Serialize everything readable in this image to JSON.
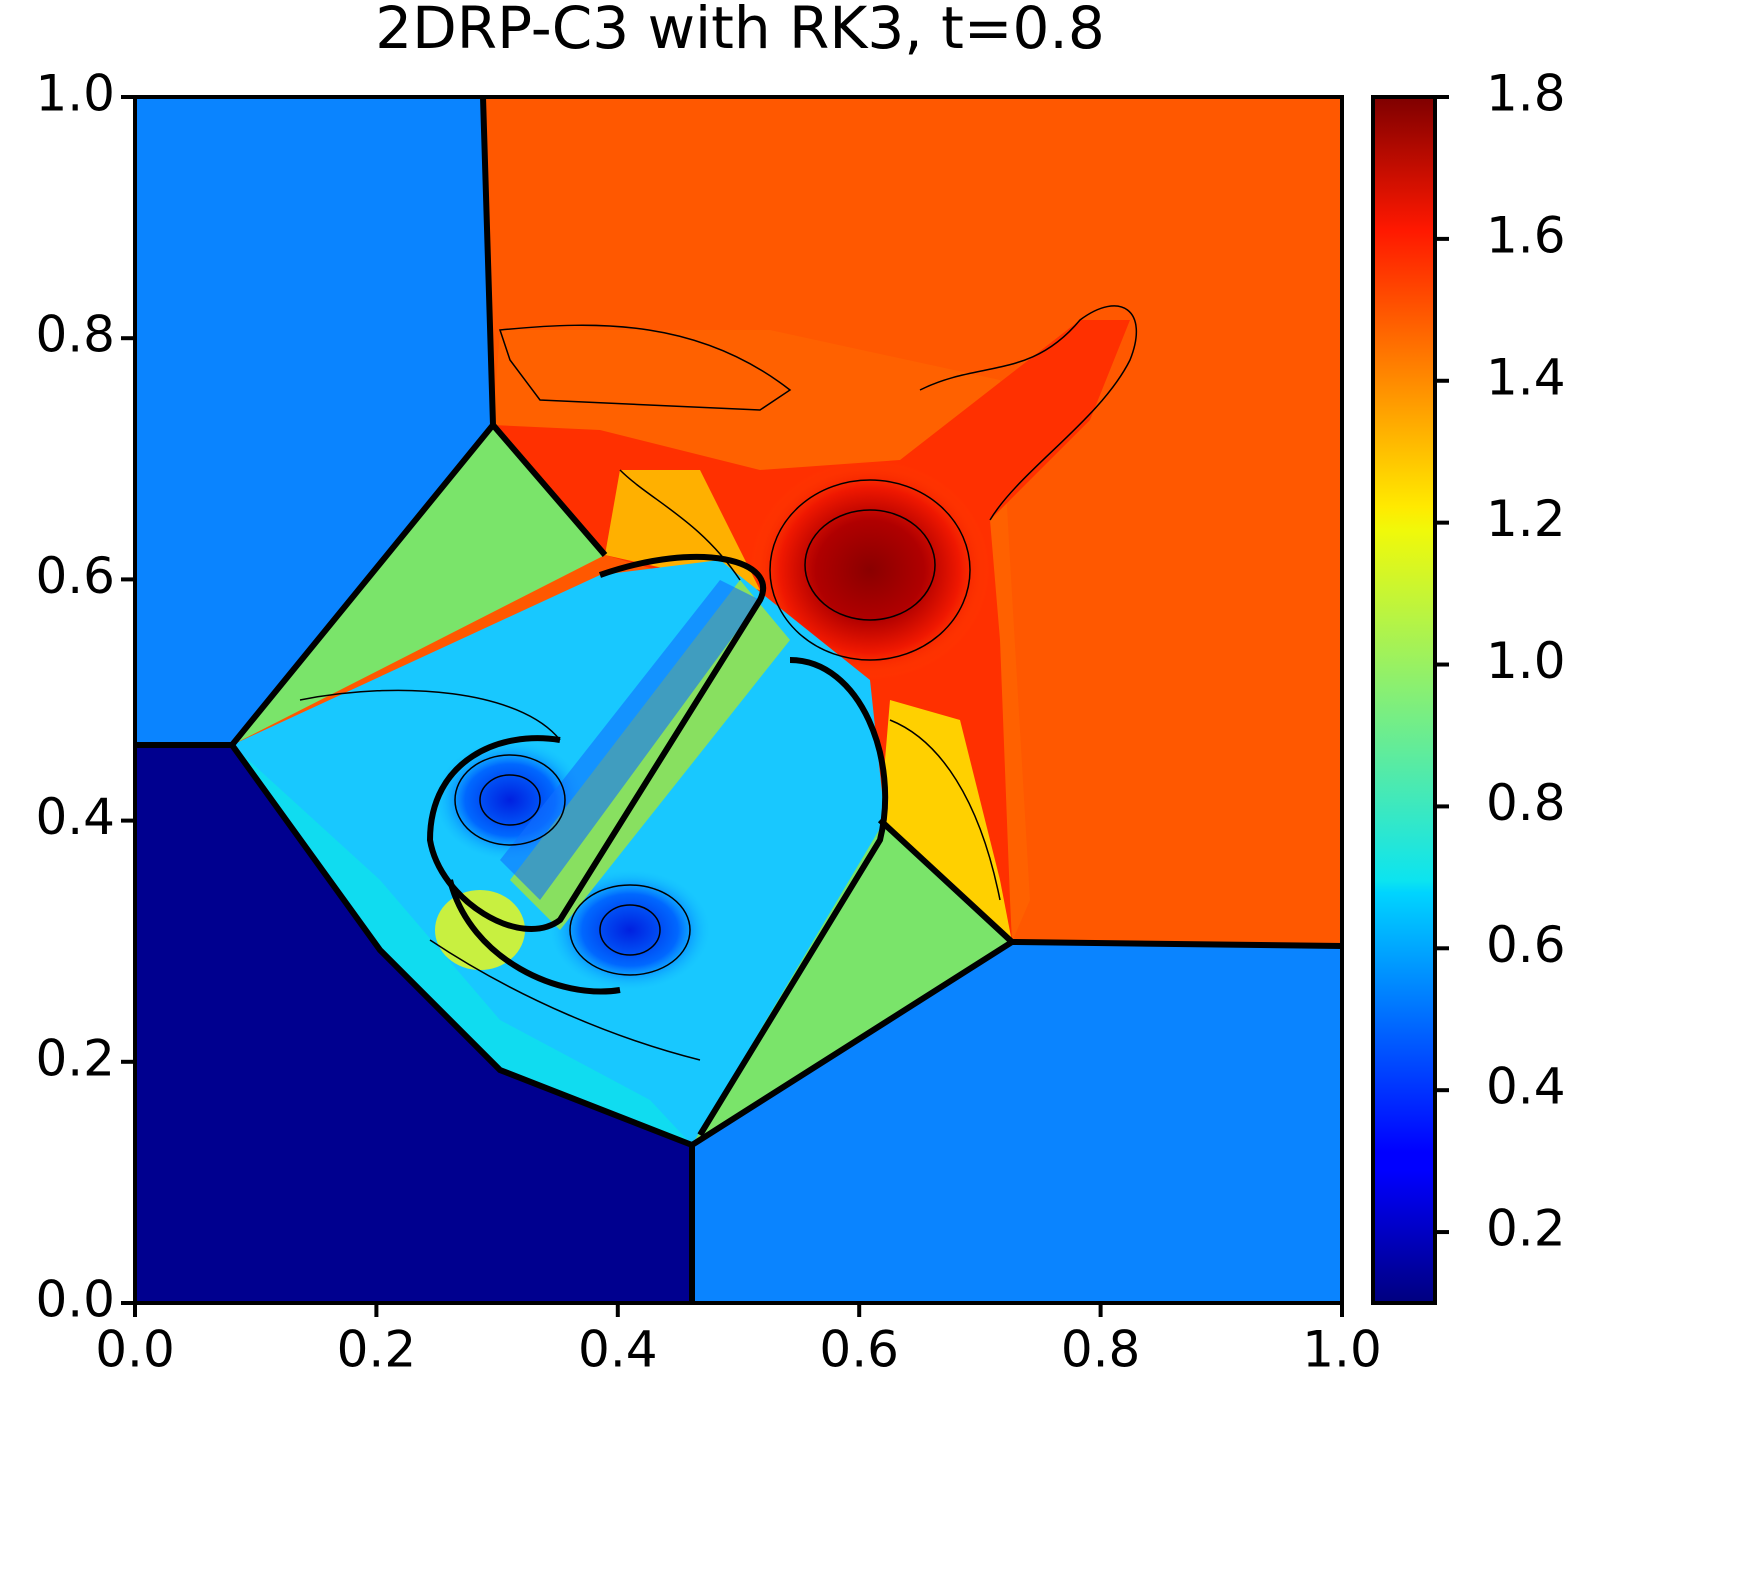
{
  "chart_data": {
    "type": "contour",
    "title": "2DRP-C3 with RK3, t=0.8",
    "xlim": [
      0,
      1
    ],
    "ylim": [
      0,
      1
    ],
    "xticks": [
      {
        "value": 0,
        "label": "0.0"
      },
      0.2,
      0.4,
      0.6,
      0.8,
      {
        "value": 1,
        "label": "1.0"
      }
    ],
    "yticks": [
      {
        "value": 0,
        "label": "0.0"
      },
      0.2,
      0.4,
      0.6,
      0.8,
      {
        "value": 1,
        "label": "1.0"
      }
    ],
    "colorbar": {
      "colormap": "jet",
      "clim": [
        0.1,
        1.8
      ],
      "ticks": [
        0.2,
        0.4,
        0.6,
        0.8,
        {
          "value": 1,
          "label": "1.0"
        },
        1.2,
        1.4,
        1.6,
        1.8
      ]
    }
  }
}
